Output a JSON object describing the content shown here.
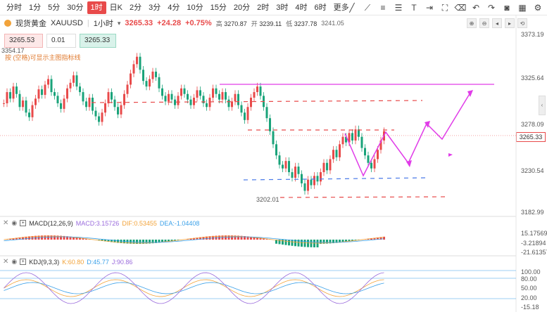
{
  "toolbar": {
    "timeframes": [
      "分时",
      "1分",
      "5分",
      "30分",
      "1时",
      "日K",
      "2分",
      "3分",
      "4分",
      "10分",
      "15分",
      "20分",
      "2时",
      "3时",
      "4时",
      "6时",
      "更多"
    ],
    "active_timeframe": "1时",
    "tools": [
      "trend-line-icon",
      "ray-icon",
      "horizontal-line-icon",
      "fib-icon",
      "text-icon",
      "measure-icon",
      "fullscreen-icon",
      "eraser-icon",
      "undo-icon",
      "redo-icon",
      "camera-icon",
      "layout-icon",
      "settings-icon"
    ]
  },
  "symbol": {
    "name": "现货黄金",
    "code": "XAUUSD",
    "period": "1小时",
    "last": "3265.33",
    "change": "+24.28",
    "change_pct": "+0.75%",
    "high_label": "高",
    "high": "3270.87",
    "open_label": "开",
    "open": "3239.11",
    "low_label": "低",
    "low": "3237.78",
    "prev": "3241.05"
  },
  "order": {
    "sell": "3265.53",
    "qty": "0.01",
    "buy": "3265.33"
  },
  "annotations": {
    "high_mark": "3354.17",
    "low_mark": "3202.01",
    "notice": "按 (空格)可显示主图指标线"
  },
  "y_axis": [
    "3373.19",
    "3325.64",
    "3278.09",
    "3265.33",
    "3230.54",
    "3182.99"
  ],
  "macd": {
    "label": "MACD(12,26,9)",
    "macd": "MACD:3.15726",
    "dif": "DIF:0.53455",
    "dea": "DEA:-1.04408",
    "axis": [
      "15.17569",
      "-3.21894",
      "-21.61357"
    ]
  },
  "kdj": {
    "label": "KDJ(9,3,3)",
    "k": "K:60.80",
    "d": "D:45.77",
    "j": "J:90.86",
    "axis": [
      "100.00",
      "80.00",
      "50.00",
      "20.00",
      "-15.18"
    ]
  },
  "colors": {
    "up": "#e84a4a",
    "down": "#1aa37a",
    "accent": "#e84a4a",
    "magenta": "#e03ce8"
  }
}
